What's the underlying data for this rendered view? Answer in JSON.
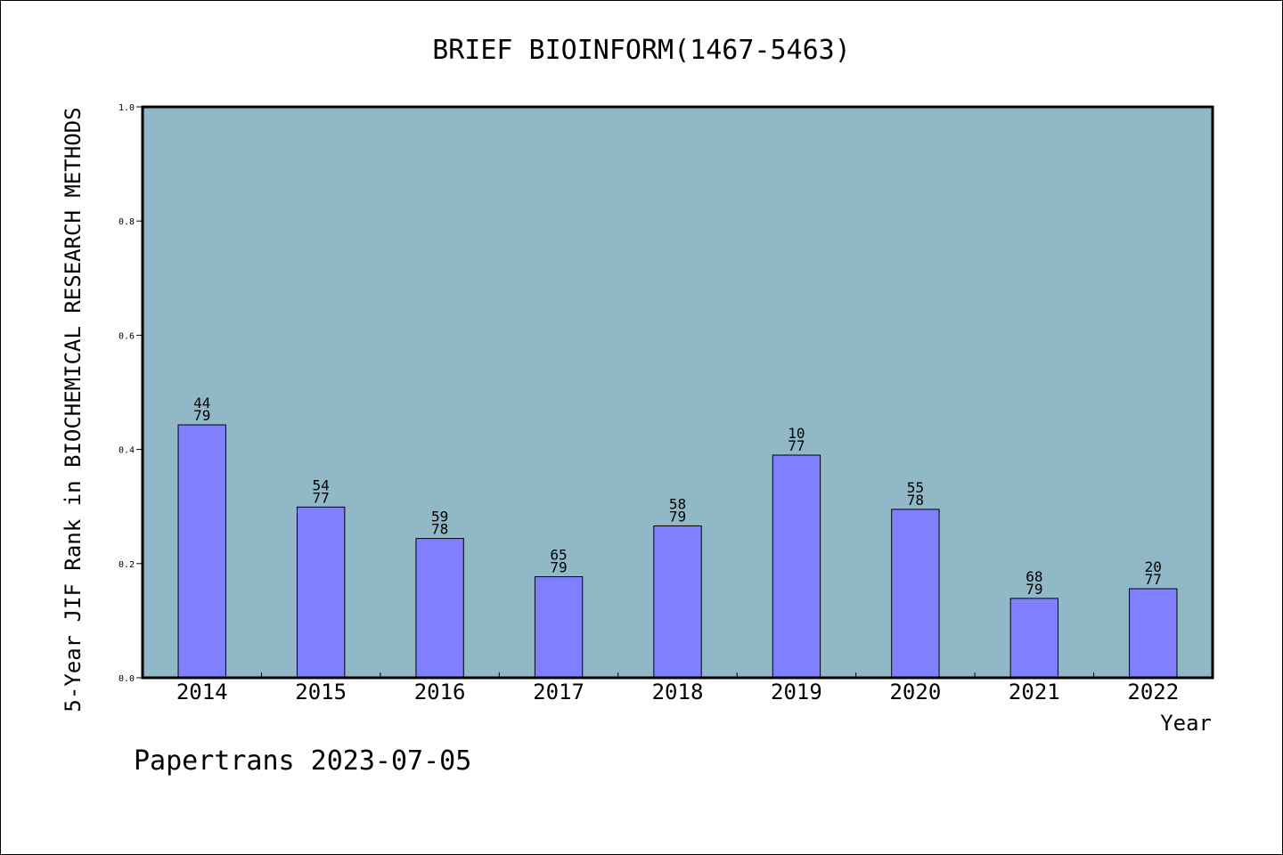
{
  "chart_data": {
    "type": "bar",
    "title": "BRIEF BIOINFORM(1467-5463)",
    "xlabel": "Year",
    "ylabel": "5-Year JIF Rank in BIOCHEMICAL RESEARCH METHODS",
    "ylim": [
      0,
      1.0
    ],
    "yticks": [
      "0.0",
      "0.2",
      "0.4",
      "0.6",
      "0.8",
      "1.0"
    ],
    "categories": [
      "2014",
      "2015",
      "2016",
      "2017",
      "2018",
      "2019",
      "2020",
      "2021",
      "2022"
    ],
    "values": [
      0.443,
      0.299,
      0.244,
      0.177,
      0.266,
      0.39,
      0.295,
      0.139,
      0.156
    ],
    "rank": [
      "44",
      "54",
      "59",
      "65",
      "58",
      "10",
      "55",
      "68",
      "20"
    ],
    "total": [
      "79",
      "77",
      "78",
      "79",
      "79",
      "77",
      "78",
      "79",
      "77"
    ],
    "grid": false,
    "colors": {
      "plot_bg": "#90b8c6",
      "bar": "#8080ff",
      "bar_stroke": "#000000"
    }
  },
  "footer": "Papertrans 2023-07-05"
}
